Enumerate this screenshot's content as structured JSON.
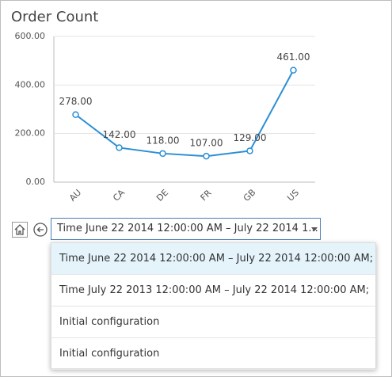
{
  "chart_data": {
    "type": "line",
    "title": "Order Count",
    "categories": [
      "AU",
      "CA",
      "DE",
      "FR",
      "GB",
      "US"
    ],
    "series": [
      {
        "name": "Order Count",
        "color": "#2b8fd4",
        "values": [
          278,
          142,
          118,
          107,
          129,
          461
        ],
        "value_labels": [
          "278.00",
          "142.00",
          "118.00",
          "107.00",
          "129.00",
          "461.00"
        ]
      }
    ],
    "ylim": [
      0,
      600
    ],
    "yticks": [
      {
        "value": 0,
        "label": "0.00"
      },
      {
        "value": 200,
        "label": "200.00"
      },
      {
        "value": 400,
        "label": "400.00"
      },
      {
        "value": 600,
        "label": "600.00"
      }
    ],
    "grid": true
  },
  "toolbar": {
    "selected": "Time June 22 2014 12:00:00 AM – July 22 2014 1..."
  },
  "dropdown": {
    "items": [
      "Time June 22 2014 12:00:00 AM – July 22 2014 12:00:00 AM;",
      "Time July 22 2013 12:00:00 AM – July 22 2014 12:00:00 AM;",
      "Initial configuration",
      "Initial configuration"
    ]
  }
}
